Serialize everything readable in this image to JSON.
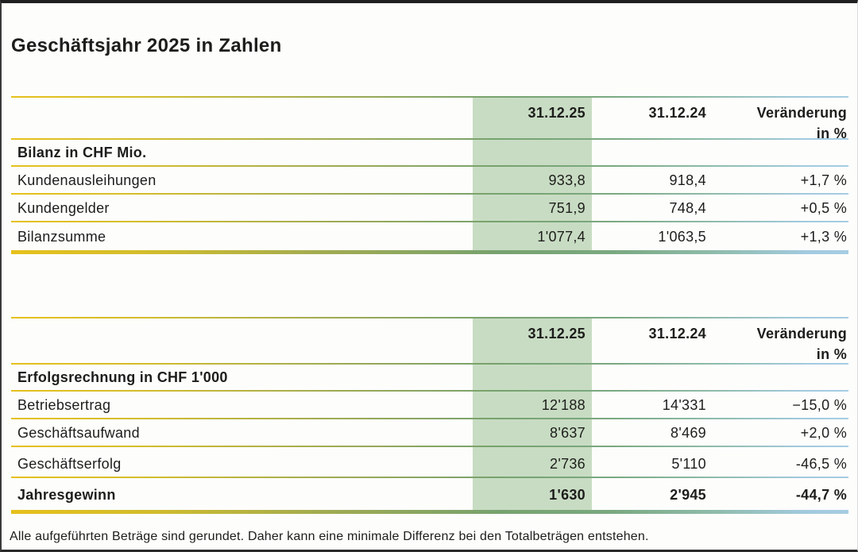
{
  "page": {
    "title": "Geschäftsjahr 2025 in Zahlen",
    "footnote": "Alle aufgeführten Beträge sind gerundet. Daher kann eine minimale Differenz bei den Totalbeträgen entstehen."
  },
  "colors": {
    "highlight_column_green": "#c8dcc3",
    "rule_gradient_yellow": "#e6c11c",
    "rule_gradient_green": "#77a26e",
    "rule_gradient_blue": "#a6cde2",
    "text": "#1d1d1b"
  },
  "tables": [
    {
      "header": {
        "col_current": "31.12.25",
        "col_prior": "31.12.24",
        "col_change_line1": "Veränderung",
        "col_change_line2": "in %"
      },
      "section_label": "Bilanz in CHF Mio.",
      "rows": [
        {
          "label": "Kundenausleihungen",
          "current": "933,8",
          "prior": "918,4",
          "change": "+1,7 %"
        },
        {
          "label": "Kundengelder",
          "current": "751,9",
          "prior": "748,4",
          "change": "+0,5 %"
        },
        {
          "label": "Bilanzsumme",
          "current": "1'077,4",
          "prior": "1'063,5",
          "change": "+1,3 %"
        }
      ]
    },
    {
      "header": {
        "col_current": "31.12.25",
        "col_prior": "31.12.24",
        "col_change_line1": "Veränderung",
        "col_change_line2": "in %"
      },
      "section_label": "Erfolgsrechnung in CHF 1'000",
      "rows": [
        {
          "label": "Betriebsertrag",
          "current": "12'188",
          "prior": "14'331",
          "change": "−15,0 %"
        },
        {
          "label": "Geschäftsaufwand",
          "current": "8'637",
          "prior": "8'469",
          "change": "+2,0 %"
        },
        {
          "label": "Geschäftserfolg",
          "current": "2'736",
          "prior": "5'110",
          "change": "-46,5 %"
        },
        {
          "label": "Jahresgewinn",
          "current": "1'630",
          "prior": "2'945",
          "change": "-44,7 %"
        }
      ]
    }
  ]
}
